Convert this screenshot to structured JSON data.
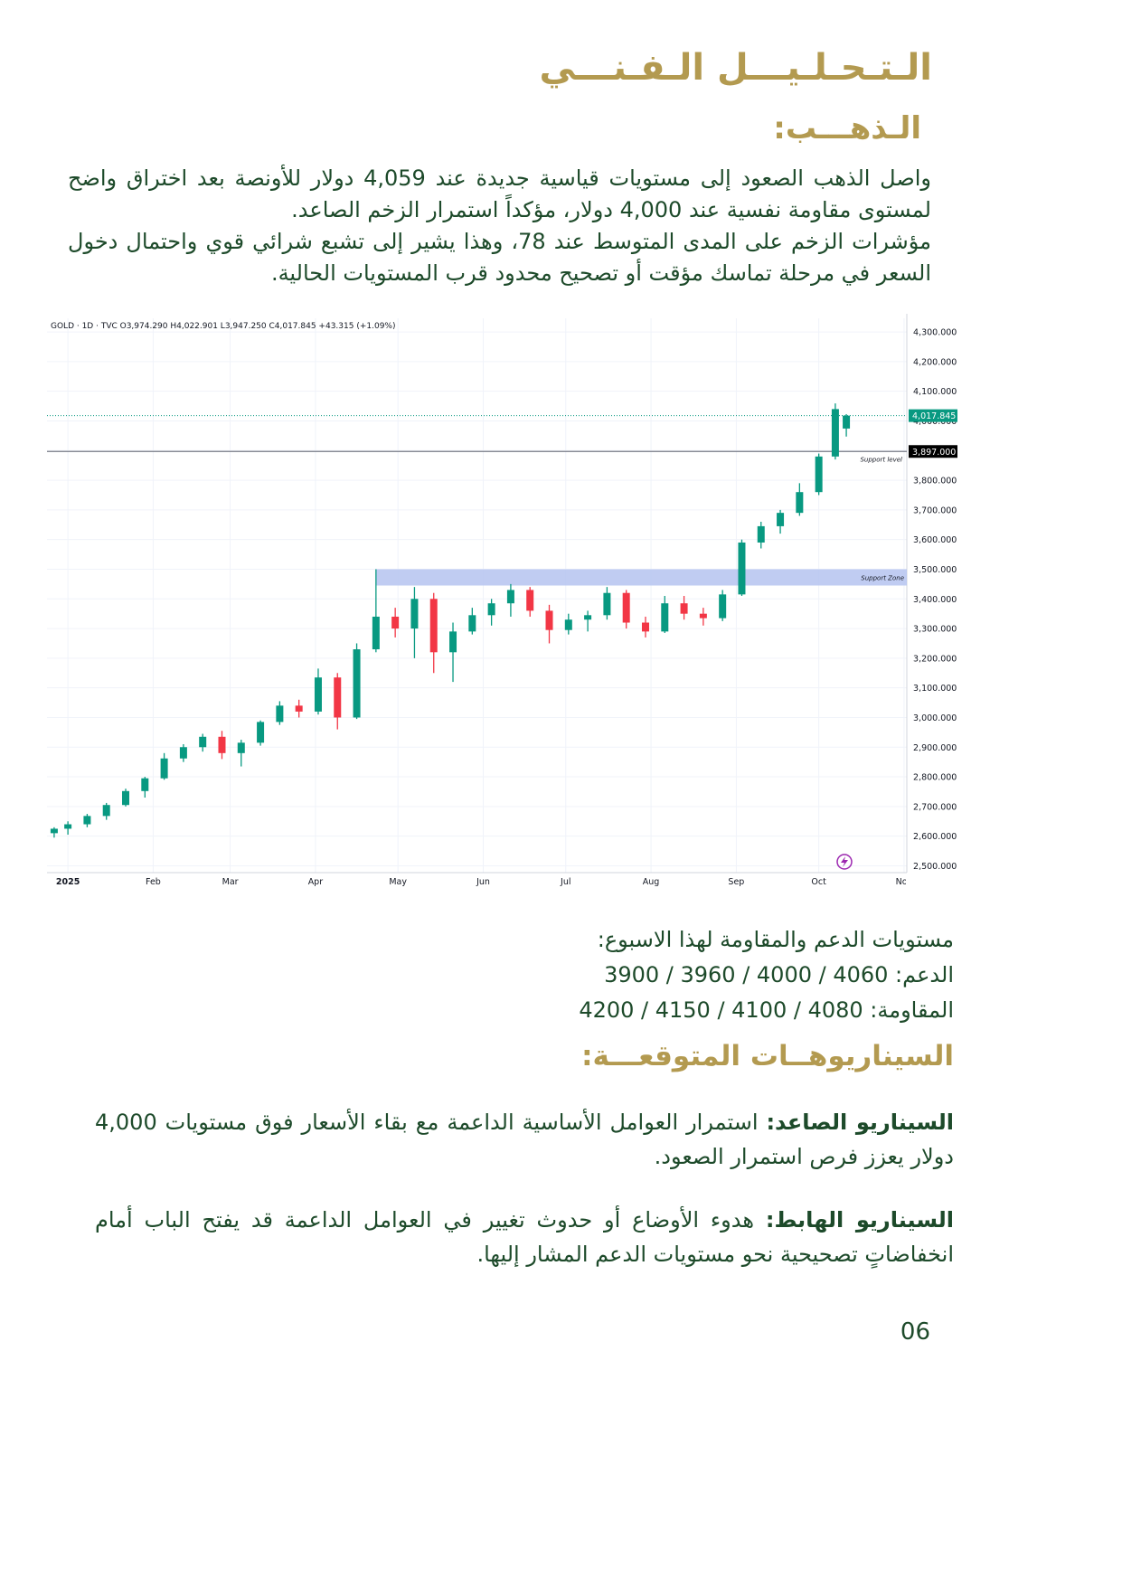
{
  "header": {
    "title": "الـتـحـلـيـــل الـفـنـــي",
    "subtitle": "الـذهـــب:"
  },
  "intro": {
    "paragraphs": [
      "واصل الذهب الصعود إلى مستويات قياسية جديدة عند 4,059 دولار للأونصة بعد اختراق واضح لمستوى مقاومة نفسية عند 4,000 دولار، مؤكداً استمرار الزخم الصاعد.",
      "مؤشرات الزخم على المدى المتوسط عند 78، وهذا يشير إلى تشبع شرائي قوي واحتمال دخول السعر في مرحلة تماسك مؤقت أو تصحيح محدود قرب المستويات الحالية."
    ]
  },
  "chart_data": {
    "type": "candlestick",
    "header": "GOLD · 1D · TVC  O3,974.290  H4,022.901  L3,947.250  C4,017.845  +43.315 (+1.09%)",
    "x": [
      -5,
      0,
      7,
      14,
      21,
      28,
      35,
      42,
      49,
      56,
      63,
      70,
      77,
      84,
      91,
      98,
      105,
      112,
      119,
      126,
      133,
      140,
      147,
      154,
      161,
      168,
      175,
      182,
      189,
      196,
      203,
      210,
      217,
      224,
      231,
      238,
      245,
      252,
      259,
      266,
      273,
      279,
      283
    ],
    "open": [
      2610,
      2625,
      2640,
      2668,
      2705,
      2752,
      2795,
      2862,
      2900,
      2935,
      2880,
      2915,
      2985,
      3040,
      3020,
      3135,
      3000,
      3230,
      3340,
      3300,
      3400,
      3220,
      3290,
      3345,
      3385,
      3430,
      3360,
      3295,
      3330,
      3345,
      3420,
      3320,
      3290,
      3385,
      3350,
      3335,
      3415,
      3590,
      3645,
      3690,
      3760,
      3880,
      3974.29
    ],
    "high": [
      2630,
      2650,
      2675,
      2712,
      2760,
      2800,
      2880,
      2910,
      2945,
      2955,
      2925,
      2990,
      3055,
      3060,
      3165,
      3150,
      3250,
      3500,
      3370,
      3440,
      3420,
      3320,
      3370,
      3400,
      3450,
      3440,
      3380,
      3350,
      3360,
      3440,
      3430,
      3340,
      3410,
      3410,
      3370,
      3430,
      3600,
      3660,
      3700,
      3790,
      3890,
      4059,
      4022.901
    ],
    "low": [
      2595,
      2605,
      2630,
      2655,
      2700,
      2730,
      2790,
      2850,
      2885,
      2860,
      2835,
      2905,
      2975,
      3000,
      3010,
      2960,
      2995,
      3220,
      3270,
      3200,
      3150,
      3120,
      3280,
      3310,
      3340,
      3340,
      3250,
      3280,
      3290,
      3330,
      3300,
      3270,
      3285,
      3330,
      3310,
      3325,
      3410,
      3570,
      3620,
      3680,
      3750,
      3870,
      3947.25
    ],
    "close": [
      2625,
      2640,
      2668,
      2705,
      2752,
      2795,
      2862,
      2900,
      2935,
      2880,
      2915,
      2985,
      3040,
      3020,
      3135,
      3000,
      3230,
      3340,
      3300,
      3400,
      3220,
      3290,
      3345,
      3385,
      3430,
      3360,
      3295,
      3330,
      3345,
      3420,
      3320,
      3290,
      3385,
      3350,
      3335,
      3415,
      3590,
      3645,
      3690,
      3760,
      3880,
      4040,
      4017.845
    ],
    "up_color": "#089981",
    "down_color": "#f23645",
    "xlim": [
      -7.6,
      305
    ],
    "xticks": [
      {
        "value": 0,
        "label": "2025"
      },
      {
        "value": 31,
        "label": "Feb"
      },
      {
        "value": 59,
        "label": "Mar"
      },
      {
        "value": 90,
        "label": "Apr"
      },
      {
        "value": 120,
        "label": "May"
      },
      {
        "value": 151,
        "label": "Jun"
      },
      {
        "value": 181,
        "label": "Jul"
      },
      {
        "value": 212,
        "label": "Aug"
      },
      {
        "value": 243,
        "label": "Sep"
      },
      {
        "value": 273,
        "label": "Oct"
      },
      {
        "value": 304,
        "label": "Nov"
      }
    ],
    "ylim": [
      2477,
      4346
    ],
    "yticks": [
      {
        "value": 2500,
        "label": "2,500.000"
      },
      {
        "value": 2600,
        "label": "2,600.000"
      },
      {
        "value": 2700,
        "label": "2,700.000"
      },
      {
        "value": 2800,
        "label": "2,800.000"
      },
      {
        "value": 2900,
        "label": "2,900.000"
      },
      {
        "value": 3000,
        "label": "3,000.000"
      },
      {
        "value": 3100,
        "label": "3,100.000"
      },
      {
        "value": 3200,
        "label": "3,200.000"
      },
      {
        "value": 3300,
        "label": "3,300.000"
      },
      {
        "value": 3400,
        "label": "3,400.000"
      },
      {
        "value": 3500,
        "label": "3,500.000"
      },
      {
        "value": 3600,
        "label": "3,600.000"
      },
      {
        "value": 3700,
        "label": "3,700.000"
      },
      {
        "value": 3800,
        "label": "3,800.000"
      },
      {
        "value": 3900,
        "label": "3,900.000"
      },
      {
        "value": 4000,
        "label": "4,000.000"
      },
      {
        "value": 4100,
        "label": "4,100.000"
      },
      {
        "value": 4200,
        "label": "4,200.000"
      },
      {
        "value": 4300,
        "label": "4,300.000"
      }
    ],
    "grid": true,
    "last_price": {
      "value": 4017.845,
      "label": "4,017.845"
    },
    "support_level": {
      "value": 3897,
      "label": "3,897.000",
      "title": "Support level"
    },
    "support_zone": {
      "values": [
        3445,
        3500
      ],
      "title": "Support Zone",
      "color": "#b5c3f0"
    }
  },
  "levels": {
    "heading": "مستويات الدعم والمقاومة لهذا الاسبوع:",
    "support": "الدعم: 4060 / 4000 / 3960 / 3900",
    "resistance": "المقاومة: 4080 / 4100 / 4150 / 4200"
  },
  "scenarios": {
    "heading": "السيناريوهــات المتوقعـــة:",
    "items": [
      {
        "label": "السيناريو الصاعد:",
        "text": "استمرار العوامل الأساسية الداعمة مع بقاء الأسعار فوق مستويات 4,000 دولار يعزز فرص استمرار الصعود."
      },
      {
        "label": "السيناريو الهابط:",
        "text": "هدوء الأوضاع أو حدوث تغيير في العوامل الداعمة قد يفتح الباب أمام انخفاضاتٍ تصحيحية نحو مستويات الدعم المشار إليها."
      }
    ]
  },
  "page_number": "06"
}
